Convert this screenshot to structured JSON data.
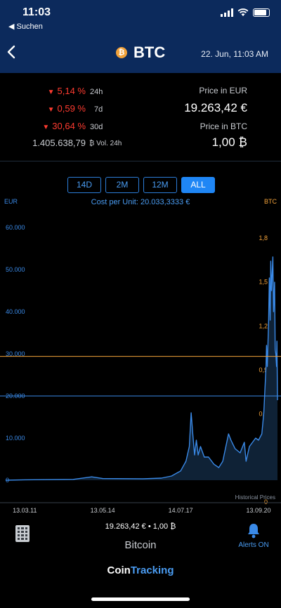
{
  "status": {
    "time": "11:03",
    "back_label": "◀ Suchen"
  },
  "header": {
    "back_icon": "chevron-left",
    "coin_symbol": "BTC",
    "coin_badge": "₿",
    "date": "22. Jun, 11:03 AM"
  },
  "changes": [
    {
      "value": "5,14 %",
      "period": "24h"
    },
    {
      "value": "0,59 %",
      "period": "7d"
    },
    {
      "value": "30,64 %",
      "period": "30d"
    }
  ],
  "volume": {
    "value": "1.405.638,79",
    "label": "₿ Vol. 24h"
  },
  "price": {
    "eur_label": "Price in EUR",
    "eur_value": "19.263,42 €",
    "btc_label": "Price in BTC",
    "btc_value": "1,00 ₿"
  },
  "ranges": {
    "items": [
      "14D",
      "2M",
      "12M",
      "ALL"
    ],
    "active": "ALL"
  },
  "cost_per_unit": "Cost per Unit: 20.033,3333 €",
  "chart_data": {
    "type": "line",
    "left_axis_label": "EUR",
    "right_axis_label": "BTC",
    "left_ticks": [
      "60.000",
      "50.000",
      "40.000",
      "30.000",
      "20.000",
      "10.000",
      "0"
    ],
    "right_ticks": [
      "1,8",
      "1,5",
      "1,2",
      "0,9",
      "0,6",
      "0,3",
      "0"
    ],
    "ylim": [
      0,
      60000
    ],
    "x_ticks": [
      "13.03.11",
      "13.05.14",
      "14.07.17",
      "13.09.20"
    ],
    "x_range": [
      "2010-06-01",
      "2021-06-22"
    ],
    "annotation": "Historical Prices",
    "reference_lines": [
      {
        "value": 29400,
        "color": "#f2a23a"
      },
      {
        "value": 20000,
        "color": "#3a8ae8"
      }
    ],
    "series": [
      {
        "color": "#3a8ae8",
        "points": [
          [
            "2010-06-01",
            0
          ],
          [
            "2011-03-13",
            100
          ],
          [
            "2013-03-01",
            200
          ],
          [
            "2013-12-01",
            800
          ],
          [
            "2014-05-13",
            400
          ],
          [
            "2016-01-01",
            350
          ],
          [
            "2016-10-01",
            500
          ],
          [
            "2017-03-01",
            1000
          ],
          [
            "2017-07-14",
            2200
          ],
          [
            "2017-10-01",
            4500
          ],
          [
            "2017-11-20",
            8000
          ],
          [
            "2017-12-17",
            16000
          ],
          [
            "2018-01-10",
            11000
          ],
          [
            "2018-02-06",
            6000
          ],
          [
            "2018-03-05",
            9500
          ],
          [
            "2018-04-01",
            6000
          ],
          [
            "2018-05-05",
            8000
          ],
          [
            "2018-07-01",
            5500
          ],
          [
            "2018-09-01",
            5500
          ],
          [
            "2018-11-20",
            3800
          ],
          [
            "2019-02-01",
            3000
          ],
          [
            "2019-04-01",
            4500
          ],
          [
            "2019-06-26",
            11000
          ],
          [
            "2019-08-01",
            9500
          ],
          [
            "2019-10-01",
            7500
          ],
          [
            "2019-12-15",
            6500
          ],
          [
            "2020-02-15",
            9000
          ],
          [
            "2020-03-13",
            4500
          ],
          [
            "2020-05-01",
            8000
          ],
          [
            "2020-08-01",
            10000
          ],
          [
            "2020-09-13",
            9500
          ],
          [
            "2020-11-01",
            11000
          ],
          [
            "2020-12-01",
            16000
          ],
          [
            "2021-01-03",
            27000
          ],
          [
            "2021-01-10",
            32000
          ],
          [
            "2021-01-22",
            27000
          ],
          [
            "2021-02-10",
            38000
          ],
          [
            "2021-02-21",
            48000
          ],
          [
            "2021-03-05",
            38000
          ],
          [
            "2021-03-14",
            52000
          ],
          [
            "2021-03-25",
            45000
          ],
          [
            "2021-04-14",
            53000
          ],
          [
            "2021-04-25",
            40000
          ],
          [
            "2021-05-10",
            47000
          ],
          [
            "2021-05-19",
            31000
          ],
          [
            "2021-05-28",
            30000
          ],
          [
            "2021-06-08",
            27000
          ],
          [
            "2021-06-14",
            33000
          ],
          [
            "2021-06-22",
            19000
          ]
        ]
      }
    ]
  },
  "footer": {
    "calculator_icon": "calculator-icon",
    "price_line": "19.263,42 € • 1,00 ₿",
    "coin_name": "Bitcoin",
    "alerts_icon": "bell-icon",
    "alerts_label": "Alerts ON",
    "brand_part1": "Coin",
    "brand_part2": "Tracking"
  },
  "colors": {
    "header_bg": "#0c2a5c",
    "accent_blue": "#3a8ae8",
    "negative": "#ff3b30",
    "orange": "#f2a23a"
  }
}
